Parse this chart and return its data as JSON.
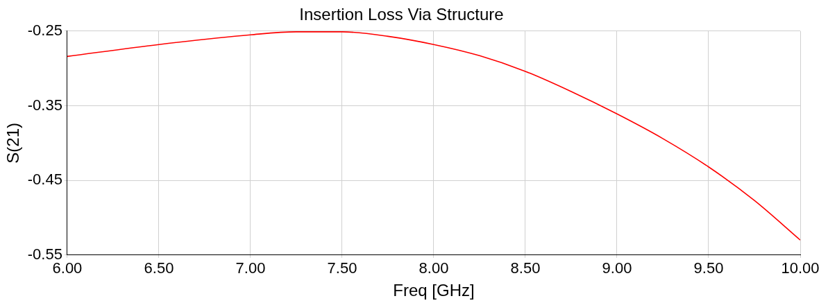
{
  "chart_data": {
    "type": "line",
    "title": "Insertion Loss Via Structure",
    "xlabel": "Freq [GHz]",
    "ylabel": "S(21)",
    "x": [
      6,
      6.5,
      7,
      7.25,
      7.5,
      7.75,
      8,
      8.25,
      8.5,
      8.75,
      9,
      9.25,
      9.5,
      9.75,
      10
    ],
    "series": [
      {
        "color": "#ff0000",
        "values": [
          -0.284,
          -0.268,
          -0.255,
          -0.251,
          -0.251,
          -0.257,
          -0.268,
          -0.283,
          -0.304,
          -0.331,
          -0.361,
          -0.394,
          -0.432,
          -0.477,
          -0.53
        ]
      }
    ],
    "xlim": [
      6,
      10
    ],
    "ylim": [
      -0.55,
      -0.25
    ],
    "xticks": [
      {
        "value": 6,
        "label": "6.00"
      },
      {
        "value": 6.5,
        "label": "6.50"
      },
      {
        "value": 7,
        "label": "7.00"
      },
      {
        "value": 7.5,
        "label": "7.50"
      },
      {
        "value": 8,
        "label": "8.00"
      },
      {
        "value": 8.5,
        "label": "8.50"
      },
      {
        "value": 9,
        "label": "9.00"
      },
      {
        "value": 9.5,
        "label": "9.50"
      },
      {
        "value": 10,
        "label": "10.00"
      }
    ],
    "yticks": [
      -0.55,
      -0.45,
      -0.35,
      -0.25
    ],
    "grid": true,
    "legend": false,
    "marker": "none",
    "line_style": "solid"
  }
}
